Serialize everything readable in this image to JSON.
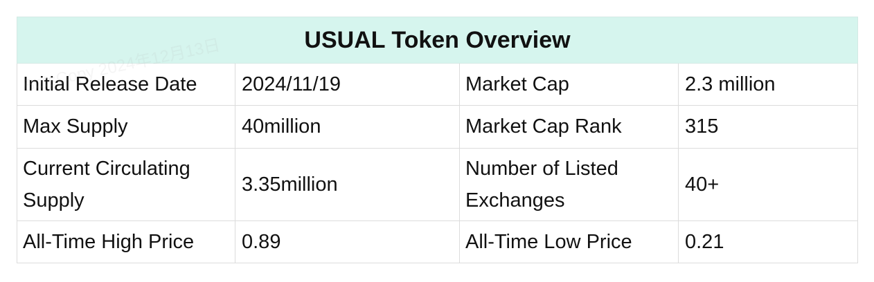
{
  "table": {
    "title": "USUAL Token Overview",
    "rows": [
      {
        "label_left": "Initial Release Date",
        "value_left": "2024/11/19",
        "label_right": "Market Cap",
        "value_right": "2.3 million"
      },
      {
        "label_left": "Max Supply",
        "value_left": "40million",
        "label_right": "Market Cap Rank",
        "value_right": "315"
      },
      {
        "label_left": "Current Circulating Supply",
        "value_left": "3.35million",
        "label_right": "Number of Listed Exchanges",
        "value_right": "40+"
      },
      {
        "label_left": "All-Time High Price",
        "value_left": "0.89",
        "label_right": "All-Time Low Price",
        "value_right": "0.21"
      }
    ]
  },
  "watermark": {
    "text": "BotsCopy 2024年12月13日"
  },
  "colors": {
    "header_background": "#d6f5ee",
    "border": "#dcdcdc",
    "text": "#111111"
  }
}
